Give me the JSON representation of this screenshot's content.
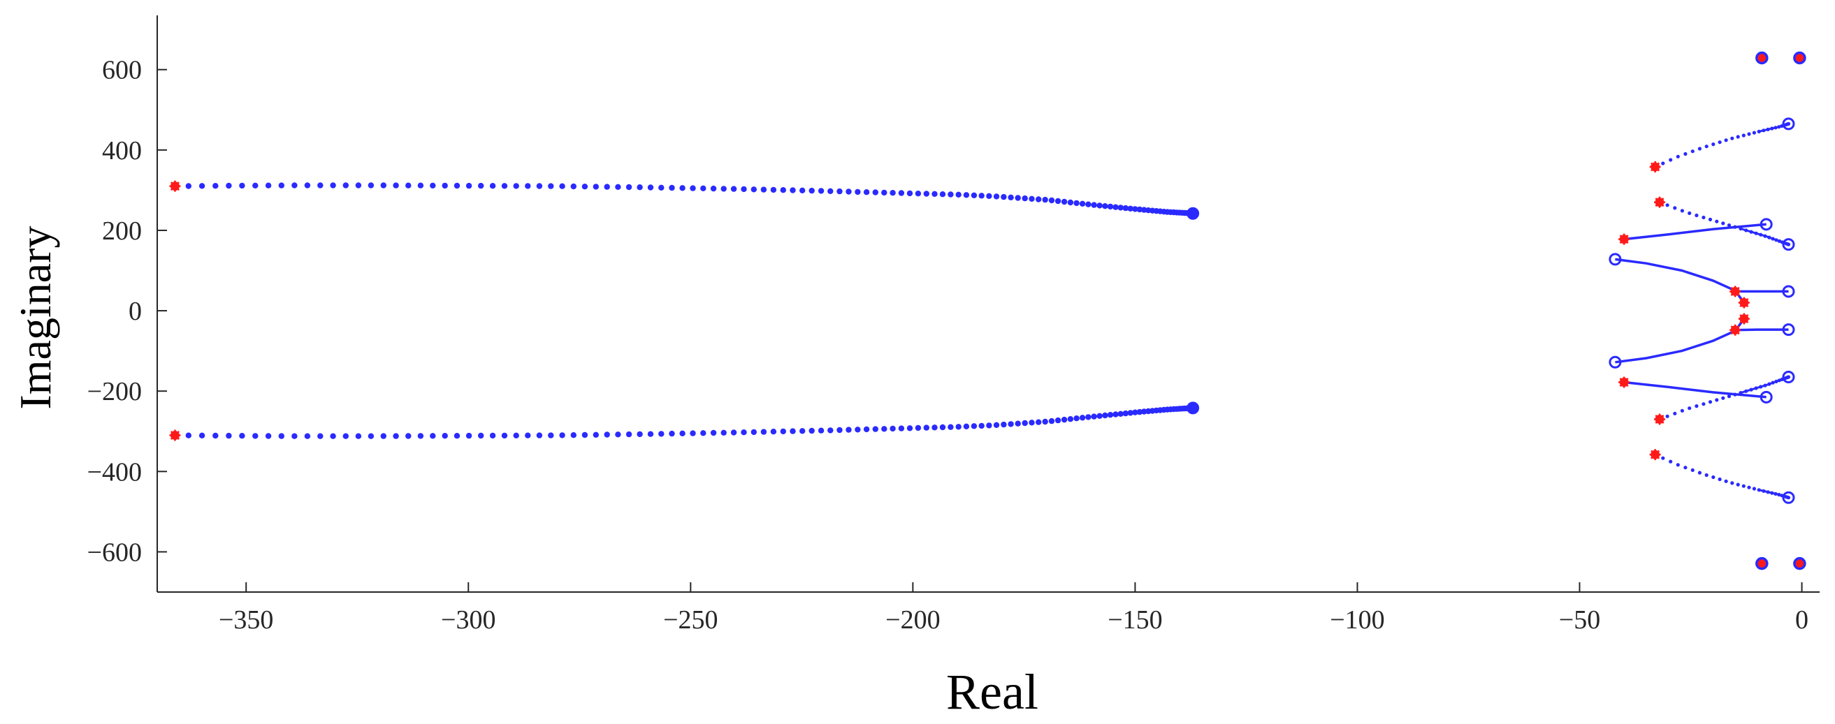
{
  "chart_data": {
    "type": "scatter",
    "title": "",
    "xlabel": "Real",
    "ylabel": "Imaginary",
    "xlim": [
      -370,
      4
    ],
    "ylim": [
      -700,
      735
    ],
    "xticks": [
      -350,
      -300,
      -250,
      -200,
      -150,
      -100,
      -50,
      0
    ],
    "yticks": [
      -600,
      -400,
      -200,
      0,
      200,
      400,
      600
    ],
    "xtick_labels": [
      "-350",
      "-300",
      "-250",
      "-200",
      "-150",
      "-100",
      "-50",
      "0"
    ],
    "ytick_labels": [
      "-600",
      "-400",
      "-200",
      "0",
      "200",
      "400",
      "600"
    ],
    "grid": false,
    "legend": null,
    "colors": {
      "locus": "#2a2aff",
      "start": "#ff1a1a",
      "end_fill": "#ff1a1a",
      "end_ring": "#2a2aff"
    },
    "series": [
      {
        "style": "dots",
        "points": [
          [
            -366,
            310
          ],
          [
            -355,
            311
          ],
          [
            -340,
            312
          ],
          [
            -320,
            312
          ],
          [
            -300,
            311
          ],
          [
            -280,
            310
          ],
          [
            -260,
            307
          ],
          [
            -240,
            303
          ],
          [
            -220,
            298
          ],
          [
            -200,
            292
          ],
          [
            -190,
            289
          ],
          [
            -182,
            285
          ],
          [
            -170,
            276
          ],
          [
            -160,
            264
          ],
          [
            -150,
            253
          ],
          [
            -143,
            246
          ],
          [
            -137,
            242
          ]
        ],
        "start": [
          -366,
          310
        ],
        "end": [
          -137,
          242
        ]
      },
      {
        "style": "dots",
        "points": [
          [
            -366,
            -310
          ],
          [
            -355,
            -311
          ],
          [
            -340,
            -312
          ],
          [
            -320,
            -312
          ],
          [
            -300,
            -311
          ],
          [
            -280,
            -310
          ],
          [
            -260,
            -307
          ],
          [
            -240,
            -303
          ],
          [
            -220,
            -298
          ],
          [
            -200,
            -292
          ],
          [
            -190,
            -289
          ],
          [
            -182,
            -285
          ],
          [
            -170,
            -276
          ],
          [
            -160,
            -264
          ],
          [
            -150,
            -253
          ],
          [
            -143,
            -246
          ],
          [
            -137,
            -242
          ]
        ],
        "start": [
          -366,
          -310
        ],
        "end": [
          -137,
          -242
        ]
      },
      {
        "style": "dots-then-line",
        "points": [
          [
            -33,
            358
          ],
          [
            -28,
            383
          ],
          [
            -22,
            407
          ],
          [
            -16,
            428
          ],
          [
            -10,
            445
          ],
          [
            -5,
            458
          ],
          [
            -3,
            465
          ]
        ],
        "start": [
          -33,
          358
        ],
        "end": [
          -3,
          465
        ]
      },
      {
        "style": "dots-then-line",
        "points": [
          [
            -33,
            -358
          ],
          [
            -28,
            -383
          ],
          [
            -22,
            -407
          ],
          [
            -16,
            -428
          ],
          [
            -10,
            -445
          ],
          [
            -5,
            -458
          ],
          [
            -3,
            -465
          ]
        ],
        "start": [
          -33,
          -358
        ],
        "end": [
          -3,
          -465
        ]
      },
      {
        "style": "dots-then-line",
        "points": [
          [
            -32,
            270
          ],
          [
            -26,
            245
          ],
          [
            -20,
            225
          ],
          [
            -14,
            205
          ],
          [
            -8,
            185
          ],
          [
            -3,
            165
          ]
        ],
        "start": [
          -32,
          270
        ],
        "end": [
          -3,
          165
        ]
      },
      {
        "style": "dots-then-line",
        "points": [
          [
            -32,
            -270
          ],
          [
            -26,
            -245
          ],
          [
            -20,
            -225
          ],
          [
            -14,
            -205
          ],
          [
            -8,
            -185
          ],
          [
            -3,
            -165
          ]
        ],
        "start": [
          -32,
          -270
        ],
        "end": [
          -3,
          -165
        ]
      },
      {
        "style": "line",
        "points": [
          [
            -40,
            178
          ],
          [
            -30,
            190
          ],
          [
            -20,
            203
          ],
          [
            -8,
            215
          ]
        ],
        "start": [
          -40,
          178
        ],
        "end": [
          -8,
          215
        ]
      },
      {
        "style": "line",
        "points": [
          [
            -40,
            -178
          ],
          [
            -30,
            -190
          ],
          [
            -20,
            -203
          ],
          [
            -8,
            -215
          ]
        ],
        "start": [
          -40,
          -178
        ],
        "end": [
          -8,
          -215
        ]
      },
      {
        "style": "line",
        "points": [
          [
            -13,
            20
          ],
          [
            -15,
            50
          ],
          [
            -20,
            75
          ],
          [
            -27,
            100
          ],
          [
            -35,
            118
          ],
          [
            -42,
            128
          ]
        ],
        "start": [
          -13,
          20
        ],
        "end": [
          -42,
          128
        ]
      },
      {
        "style": "line",
        "points": [
          [
            -13,
            -20
          ],
          [
            -15,
            -50
          ],
          [
            -20,
            -75
          ],
          [
            -27,
            -100
          ],
          [
            -35,
            -118
          ],
          [
            -42,
            -128
          ]
        ],
        "start": [
          -13,
          -20
        ],
        "end": [
          -42,
          -128
        ]
      },
      {
        "style": "line",
        "points": [
          [
            -15,
            48
          ],
          [
            -10,
            48
          ],
          [
            -3,
            48
          ]
        ],
        "start": [
          -15,
          48
        ],
        "end": [
          -3,
          48
        ]
      },
      {
        "style": "line",
        "points": [
          [
            -15,
            -48
          ],
          [
            -10,
            -47
          ],
          [
            -3,
            -47
          ]
        ],
        "start": [
          -15,
          -48
        ],
        "end": [
          -3,
          -47
        ]
      }
    ],
    "fixed_points": [
      [
        -9,
        629
      ],
      [
        -0.5,
        629
      ],
      [
        -9,
        -629
      ],
      [
        -0.5,
        -629
      ]
    ]
  }
}
